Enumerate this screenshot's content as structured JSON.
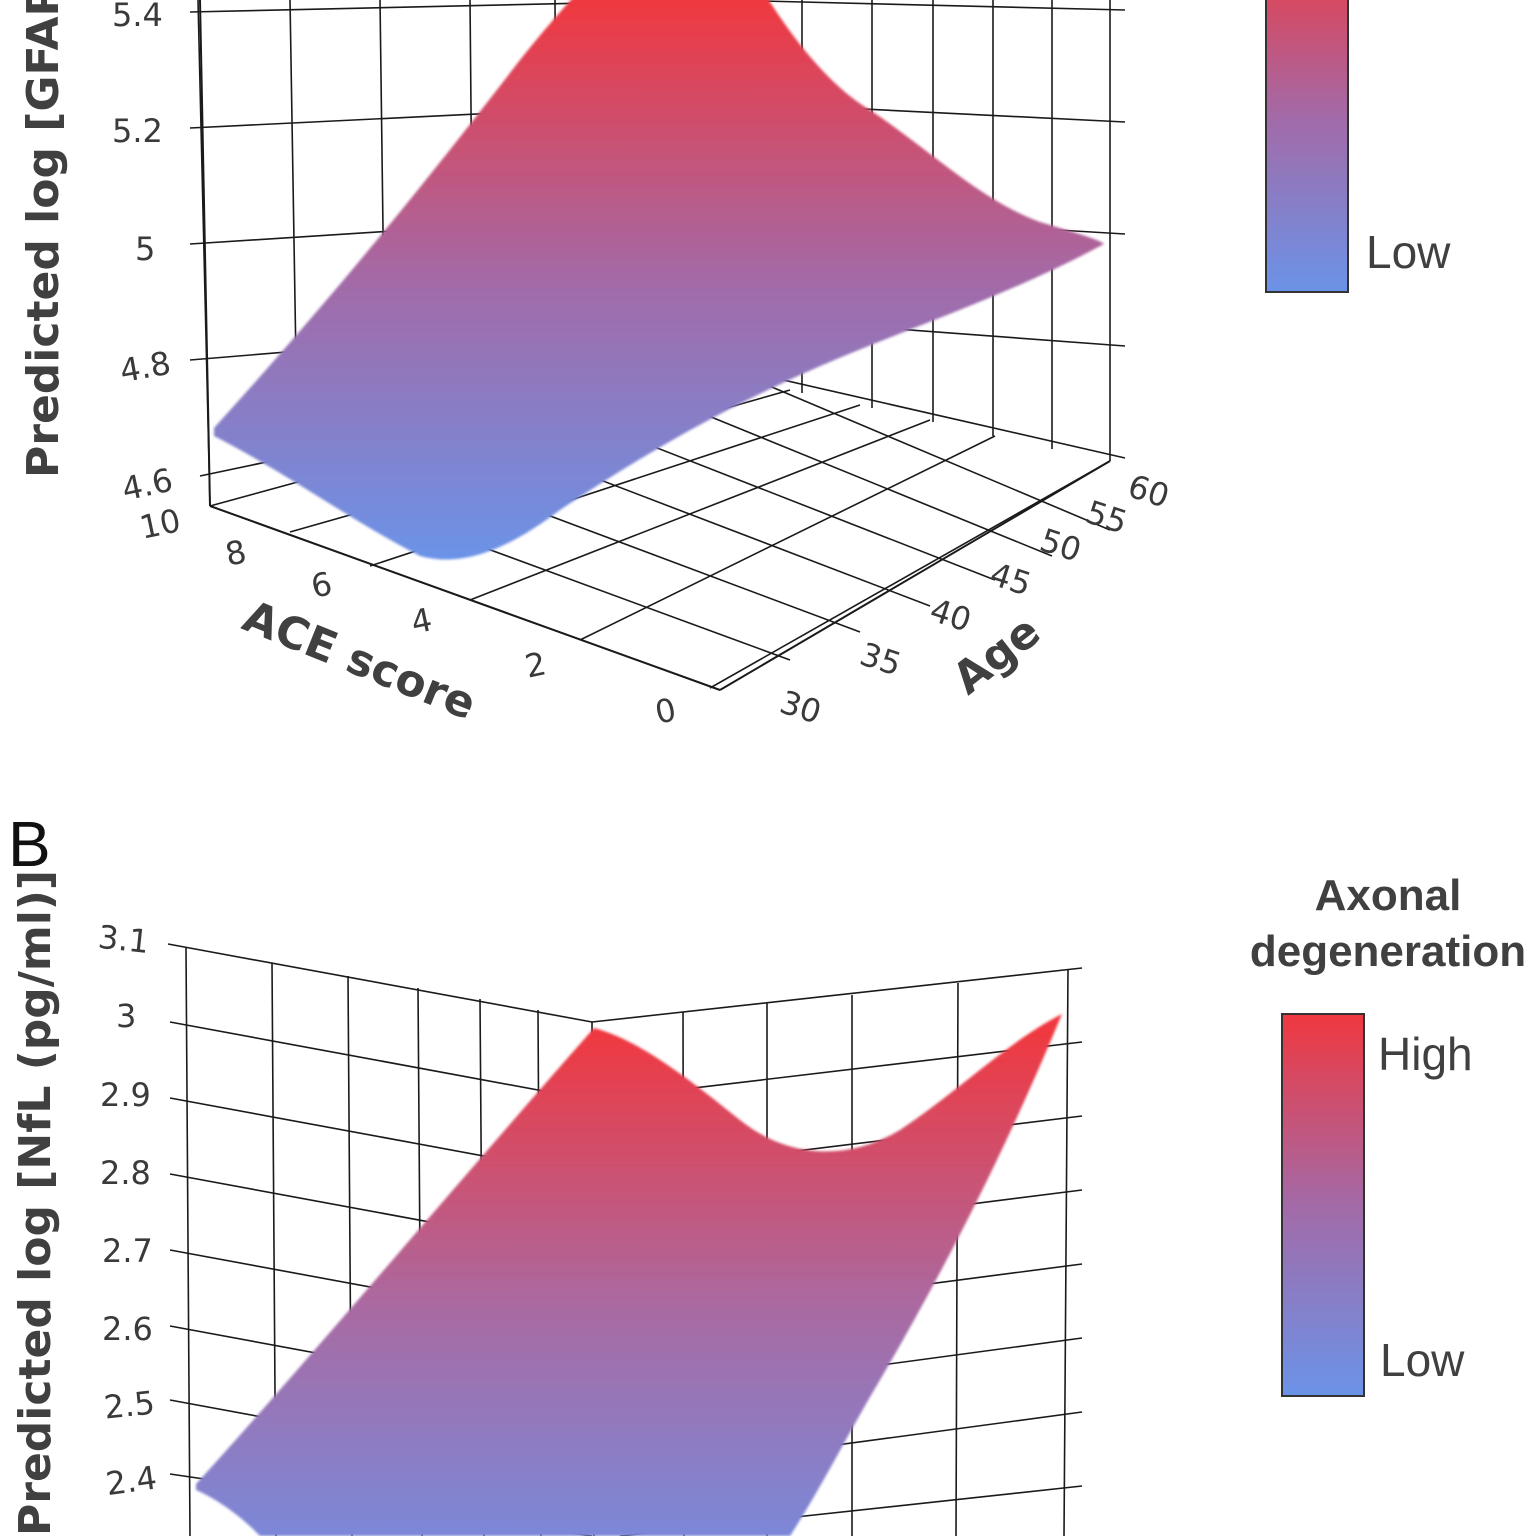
{
  "colors": {
    "low": "#6b93e8",
    "mid": "#a36aa7",
    "high": "#f0383f",
    "grid": "#1a1a1a"
  },
  "panel_b_label": "B",
  "chart_data": [
    {
      "type": "surface3d",
      "ylabel": "Predicted log [GFAP (pg",
      "xlabel": "ACE score",
      "zlabel": "Age",
      "y_ticks": [
        "4.6",
        "4.8",
        "5",
        "5.2",
        "5.4"
      ],
      "x_ticks": [
        "10",
        "8",
        "6",
        "4",
        "2",
        "0"
      ],
      "z_ticks": [
        "30",
        "35",
        "40",
        "45",
        "50",
        "55",
        "60"
      ],
      "colorbar": {
        "title": "",
        "high_label": "",
        "low_label": "Low"
      },
      "surface_profile": {
        "front_edge_age30_ace10_to_0": [
          4.67,
          4.5,
          4.5,
          4.85,
          5.2,
          5.4
        ],
        "back_edge_age60_ace10_to_0": [
          5.0,
          5.05,
          5.1,
          5.2,
          5.3,
          5.4
        ]
      }
    },
    {
      "type": "surface3d",
      "ylabel": "Predicted log [NfL (pg/ml)]",
      "y_ticks": [
        "2.4",
        "2.5",
        "2.6",
        "2.7",
        "2.8",
        "2.9",
        "3",
        "3.1"
      ],
      "colorbar": {
        "title_line1": "Axonal",
        "title_line2": "degeneration",
        "high_label": "High",
        "low_label": "Low"
      },
      "surface_profile": {
        "left_edge_peak": 2.99,
        "right_edge_peak": 3.0,
        "ridge_min": 2.84,
        "front_left_corner": 2.39
      }
    }
  ]
}
